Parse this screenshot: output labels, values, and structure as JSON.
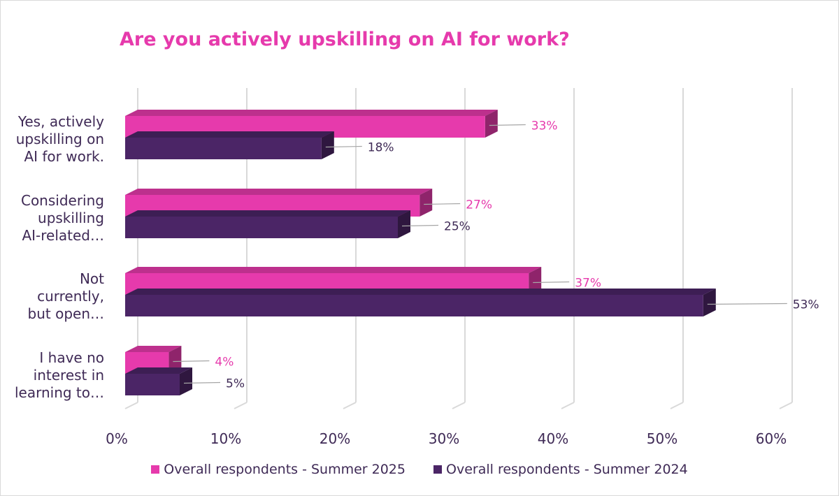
{
  "chart_data": {
    "type": "bar",
    "orientation": "horizontal",
    "title": "Are you actively upskilling on AI for work?",
    "categories": [
      [
        "Yes, actively",
        "upskilling on",
        "AI for work."
      ],
      [
        "Considering",
        "upskilling",
        "AI-related…"
      ],
      [
        "Not",
        "currently,",
        "but open…"
      ],
      [
        "I have no",
        "interest in",
        "learning to…"
      ]
    ],
    "series": [
      {
        "name": "Overall respondents - Summer 2025",
        "color": "#e63aac",
        "values": [
          33,
          27,
          37,
          4
        ]
      },
      {
        "name": "Overall respondents - Summer 2024",
        "color": "#4b2566",
        "values": [
          18,
          25,
          53,
          5
        ]
      }
    ],
    "data_labels": [
      [
        "33%",
        "27%",
        "37%",
        "4%"
      ],
      [
        "18%",
        "25%",
        "53%",
        "5%"
      ]
    ],
    "x_ticks": [
      "0%",
      "10%",
      "20%",
      "30%",
      "40%",
      "50%",
      "60%"
    ],
    "xlim": [
      0,
      60
    ],
    "grid": true,
    "legend": "bottom"
  }
}
